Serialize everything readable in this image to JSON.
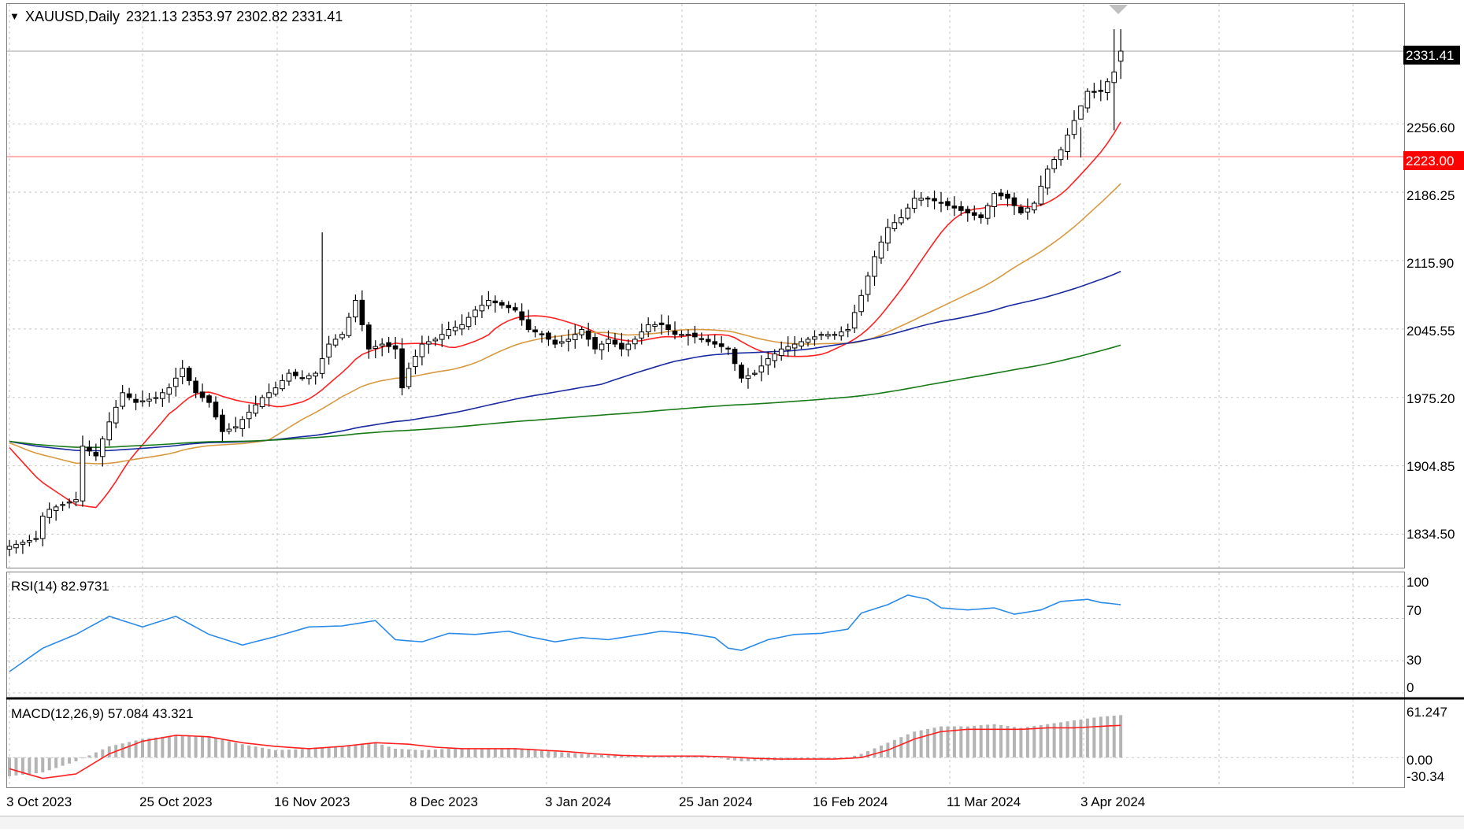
{
  "header": {
    "arrow": "▼",
    "symbol": "XAUUSD,Daily",
    "ohlc": "2321.13 2353.97 2302.82 2331.41"
  },
  "price_panel": {
    "current_price_label": "2331.41",
    "hline_label": "2223.00",
    "y_ticks": [
      "2256.60",
      "2186.25",
      "2115.90",
      "2045.55",
      "1975.20",
      "1904.85",
      "1834.50"
    ]
  },
  "rsi_panel": {
    "label": "RSI(14) 82.9731",
    "y_ticks": [
      "100",
      "70",
      "30",
      "0"
    ]
  },
  "macd_panel": {
    "label": "MACD(12,26,9) 57.084 43.321",
    "y_ticks": [
      "61.247",
      "0.00",
      "-30.34"
    ]
  },
  "x_ticks": [
    "3 Oct 2023",
    "25 Oct 2023",
    "16 Nov 2023",
    "8 Dec 2023",
    "3 Jan 2024",
    "25 Jan 2024",
    "16 Feb 2024",
    "11 Mar 2024",
    "3 Apr 2024"
  ],
  "colors": {
    "background": "#ffffff",
    "grid": "#c8c8c8",
    "candle_up_body": "#ffffff",
    "candle_down_body": "#000000",
    "candle_outline": "#000000",
    "ma_fast": "#ff2020",
    "ma_mid": "#d89a40",
    "ma_slow": "#1a2aa0",
    "ma_long": "#1a7a1a",
    "hline": "#ffb0b0",
    "hline_tag": "#ff0000",
    "rsi_line": "#2a8ae8",
    "macd_hist": "#b4b4b4",
    "macd_signal": "#ff2020",
    "price_tag_bg": "#000000",
    "price_tag_text": "#ffffff"
  },
  "chart_data": [
    {
      "type": "candlestick",
      "symbol": "XAUUSD",
      "timeframe": "Daily",
      "horizontal_line": 2223.0,
      "last_close": 2331.41,
      "ylim": [
        1800,
        2380
      ],
      "x_tick_labels": [
        "3 Oct 2023",
        "25 Oct 2023",
        "16 Nov 2023",
        "8 Dec 2023",
        "3 Jan 2024",
        "25 Jan 2024",
        "16 Feb 2024",
        "11 Mar 2024",
        "3 Apr 2024"
      ],
      "y_tick_labels": [
        2256.6,
        2186.25,
        2115.9,
        2045.55,
        1975.2,
        1904.85,
        1834.5
      ],
      "close_anchors": [
        [
          0,
          1822
        ],
        [
          4,
          1830
        ],
        [
          5,
          1853
        ],
        [
          6,
          1860
        ],
        [
          8,
          1865
        ],
        [
          10,
          1870
        ],
        [
          11,
          1925
        ],
        [
          13,
          1915
        ],
        [
          15,
          1950
        ],
        [
          17,
          1980
        ],
        [
          19,
          1970
        ],
        [
          22,
          1975
        ],
        [
          24,
          1985
        ],
        [
          26,
          2005
        ],
        [
          28,
          1980
        ],
        [
          30,
          1970
        ],
        [
          32,
          1940
        ],
        [
          34,
          1945
        ],
        [
          36,
          1960
        ],
        [
          38,
          1975
        ],
        [
          40,
          1985
        ],
        [
          42,
          2000
        ],
        [
          44,
          1995
        ],
        [
          46,
          2000
        ],
        [
          48,
          2030
        ],
        [
          50,
          2040
        ],
        [
          52,
          2075
        ],
        [
          54,
          2025
        ],
        [
          56,
          2030
        ],
        [
          58,
          2025
        ],
        [
          59,
          1985
        ],
        [
          60,
          2005
        ],
        [
          62,
          2030
        ],
        [
          64,
          2035
        ],
        [
          66,
          2045
        ],
        [
          68,
          2050
        ],
        [
          70,
          2065
        ],
        [
          72,
          2075
        ],
        [
          74,
          2070
        ],
        [
          76,
          2065
        ],
        [
          78,
          2045
        ],
        [
          80,
          2040
        ],
        [
          82,
          2030
        ],
        [
          84,
          2035
        ],
        [
          86,
          2045
        ],
        [
          88,
          2025
        ],
        [
          90,
          2035
        ],
        [
          92,
          2025
        ],
        [
          94,
          2035
        ],
        [
          96,
          2050
        ],
        [
          98,
          2050
        ],
        [
          100,
          2040
        ],
        [
          102,
          2040
        ],
        [
          104,
          2035
        ],
        [
          106,
          2030
        ],
        [
          108,
          2025
        ],
        [
          110,
          1995
        ],
        [
          112,
          2000
        ],
        [
          114,
          2015
        ],
        [
          116,
          2025
        ],
        [
          118,
          2030
        ],
        [
          120,
          2035
        ],
        [
          122,
          2040
        ],
        [
          124,
          2040
        ],
        [
          126,
          2045
        ],
        [
          128,
          2080
        ],
        [
          130,
          2120
        ],
        [
          132,
          2150
        ],
        [
          134,
          2160
        ],
        [
          136,
          2180
        ],
        [
          138,
          2180
        ],
        [
          140,
          2175
        ],
        [
          142,
          2170
        ],
        [
          144,
          2165
        ],
        [
          146,
          2160
        ],
        [
          148,
          2185
        ],
        [
          150,
          2180
        ],
        [
          152,
          2165
        ],
        [
          154,
          2175
        ],
        [
          156,
          2210
        ],
        [
          158,
          2230
        ],
        [
          160,
          2260
        ],
        [
          162,
          2290
        ],
        [
          164,
          2290
        ],
        [
          166,
          2310
        ],
        [
          167,
          2331.41
        ]
      ]
    },
    {
      "type": "line",
      "name": "RSI(14)",
      "last_value": 82.9731,
      "ylim": [
        0,
        100
      ],
      "levels": [
        100,
        70,
        30,
        0
      ],
      "anchors": [
        [
          0,
          20
        ],
        [
          5,
          42
        ],
        [
          10,
          55
        ],
        [
          15,
          72
        ],
        [
          20,
          62
        ],
        [
          25,
          72
        ],
        [
          30,
          55
        ],
        [
          35,
          45
        ],
        [
          40,
          53
        ],
        [
          45,
          62
        ],
        [
          50,
          63
        ],
        [
          55,
          68
        ],
        [
          58,
          50
        ],
        [
          62,
          48
        ],
        [
          66,
          56
        ],
        [
          70,
          55
        ],
        [
          75,
          58
        ],
        [
          78,
          53
        ],
        [
          82,
          48
        ],
        [
          86,
          52
        ],
        [
          90,
          50
        ],
        [
          94,
          54
        ],
        [
          98,
          58
        ],
        [
          102,
          56
        ],
        [
          106,
          52
        ],
        [
          108,
          42
        ],
        [
          110,
          40
        ],
        [
          114,
          50
        ],
        [
          118,
          55
        ],
        [
          122,
          56
        ],
        [
          126,
          60
        ],
        [
          128,
          75
        ],
        [
          132,
          83
        ],
        [
          135,
          92
        ],
        [
          138,
          88
        ],
        [
          140,
          80
        ],
        [
          144,
          78
        ],
        [
          148,
          80
        ],
        [
          151,
          74
        ],
        [
          155,
          78
        ],
        [
          158,
          86
        ],
        [
          162,
          88
        ],
        [
          164,
          85
        ],
        [
          167,
          83
        ]
      ]
    },
    {
      "type": "bar+line",
      "name": "MACD(12,26,9)",
      "last_values": {
        "macd": 57.084,
        "signal": 43.321
      },
      "ylim": [
        -30.34,
        61.247
      ],
      "macd_anchors": [
        [
          0,
          -25
        ],
        [
          5,
          -20
        ],
        [
          10,
          -5
        ],
        [
          15,
          15
        ],
        [
          20,
          25
        ],
        [
          25,
          30
        ],
        [
          30,
          28
        ],
        [
          35,
          18
        ],
        [
          40,
          10
        ],
        [
          45,
          12
        ],
        [
          50,
          15
        ],
        [
          55,
          20
        ],
        [
          58,
          12
        ],
        [
          62,
          10
        ],
        [
          66,
          12
        ],
        [
          70,
          11
        ],
        [
          75,
          13
        ],
        [
          78,
          12
        ],
        [
          82,
          8
        ],
        [
          86,
          5
        ],
        [
          90,
          3
        ],
        [
          94,
          2
        ],
        [
          98,
          2
        ],
        [
          102,
          2
        ],
        [
          106,
          2
        ],
        [
          108,
          -3
        ],
        [
          110,
          -5
        ],
        [
          114,
          -4
        ],
        [
          118,
          -3
        ],
        [
          122,
          -2
        ],
        [
          126,
          0
        ],
        [
          128,
          5
        ],
        [
          132,
          20
        ],
        [
          136,
          35
        ],
        [
          140,
          42
        ],
        [
          144,
          42
        ],
        [
          148,
          45
        ],
        [
          152,
          40
        ],
        [
          156,
          45
        ],
        [
          160,
          50
        ],
        [
          164,
          55
        ],
        [
          167,
          57.084
        ]
      ],
      "signal_anchors": [
        [
          0,
          -15
        ],
        [
          5,
          -28
        ],
        [
          10,
          -22
        ],
        [
          15,
          5
        ],
        [
          20,
          22
        ],
        [
          25,
          30
        ],
        [
          30,
          28
        ],
        [
          35,
          20
        ],
        [
          40,
          15
        ],
        [
          45,
          12
        ],
        [
          50,
          15
        ],
        [
          55,
          20
        ],
        [
          60,
          18
        ],
        [
          64,
          14
        ],
        [
          68,
          12
        ],
        [
          72,
          12
        ],
        [
          76,
          12
        ],
        [
          80,
          10
        ],
        [
          84,
          8
        ],
        [
          88,
          5
        ],
        [
          92,
          3
        ],
        [
          96,
          2
        ],
        [
          100,
          2
        ],
        [
          104,
          2
        ],
        [
          108,
          1
        ],
        [
          112,
          -1
        ],
        [
          116,
          -2
        ],
        [
          120,
          -2
        ],
        [
          124,
          -2
        ],
        [
          128,
          0
        ],
        [
          132,
          10
        ],
        [
          136,
          25
        ],
        [
          140,
          35
        ],
        [
          144,
          38
        ],
        [
          148,
          38
        ],
        [
          152,
          38
        ],
        [
          156,
          40
        ],
        [
          160,
          40
        ],
        [
          164,
          42
        ],
        [
          167,
          43.321
        ]
      ]
    }
  ]
}
